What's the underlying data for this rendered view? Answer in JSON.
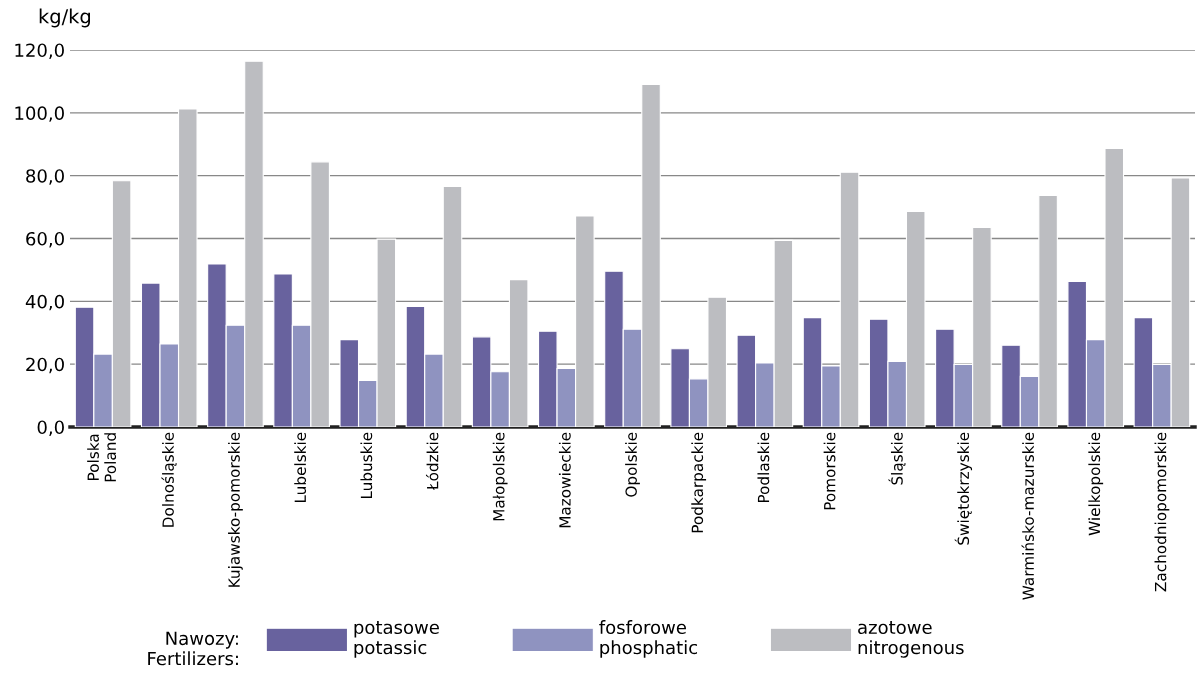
{
  "chart_data": {
    "type": "bar",
    "ylabel": "kg/kg",
    "legend_title": "Nawozy:\nFertilizers:",
    "categories": [
      "Polska\nPoland",
      "Dolnośląskie",
      "Kujawsko-pomorskie",
      "Lubelskie",
      "Lubuskie",
      "Łódzkie",
      "Małopolskie",
      "Mazowieckie",
      "Opolskie",
      "Podkarpackie",
      "Podlaskie",
      "Pomorskie",
      "Śląskie",
      "Świętokrzyskie",
      "Warmińsko-mazurskie",
      "Wielkopolskie",
      "Zachodniopomorskie"
    ],
    "series": [
      {
        "name": "potasowe\npotassic",
        "color": "#68629e",
        "values": [
          38.1,
          45.8,
          51.9,
          48.7,
          27.8,
          38.4,
          28.7,
          30.5,
          49.6,
          24.9,
          29.2,
          34.8,
          34.3,
          31.1,
          26.0,
          46.3,
          34.8
        ]
      },
      {
        "name": "fosforowe\nphosphatic",
        "color": "#8f93c0",
        "values": [
          23.2,
          26.4,
          32.4,
          32.4,
          14.8,
          23.2,
          17.6,
          18.6,
          31.1,
          15.3,
          20.4,
          19.4,
          20.9,
          19.9,
          16.1,
          27.8,
          19.9
        ]
      },
      {
        "name": "azotowe\nnitrogenous",
        "color": "#bcbdc1",
        "values": [
          78.4,
          101.2,
          116.4,
          84.4,
          59.8,
          76.6,
          46.9,
          67.2,
          109.0,
          41.3,
          59.4,
          81.1,
          68.6,
          63.5,
          73.7,
          88.7,
          79.3
        ]
      }
    ],
    "ylim": [
      0,
      120
    ],
    "yticks": [
      {
        "value": 0,
        "label": "0,0"
      },
      {
        "value": 20,
        "label": "20,0"
      },
      {
        "value": 40,
        "label": "40,0"
      },
      {
        "value": 60,
        "label": "60,0"
      },
      {
        "value": 80,
        "label": "80,0"
      },
      {
        "value": 100,
        "label": "100,0"
      },
      {
        "value": 120,
        "label": "120,0"
      }
    ],
    "grid": "y",
    "legend": "bottom"
  }
}
